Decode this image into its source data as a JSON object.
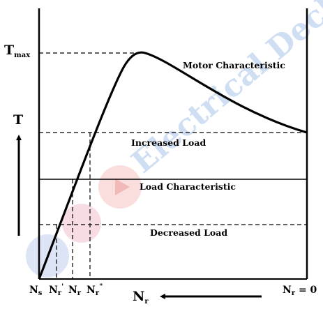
{
  "watermark": {
    "text": "Electrical Deck",
    "color": "#a8c4ea"
  },
  "axis_labels": {
    "torque_max": {
      "main": "T",
      "sub": "max"
    },
    "torque": "T",
    "speed": {
      "main": "N",
      "sub": "r"
    }
  },
  "speed_ticks": [
    {
      "main": "N",
      "sub": "s",
      "sup": ""
    },
    {
      "main": "N",
      "sub": "r",
      "sup": "'"
    },
    {
      "main": "N",
      "sub": "r",
      "sup": ""
    },
    {
      "main": "N",
      "sub": "r",
      "sup": "\""
    }
  ],
  "speed_zero": {
    "main": "N",
    "sub": "r",
    "rest": " = 0"
  },
  "curve_labels": {
    "motor": "Motor Characteristic",
    "increased": "Increased Load",
    "load": "Load Characteristic",
    "decreased": "Decreased Load"
  },
  "colors": {
    "line": "#000000"
  }
}
